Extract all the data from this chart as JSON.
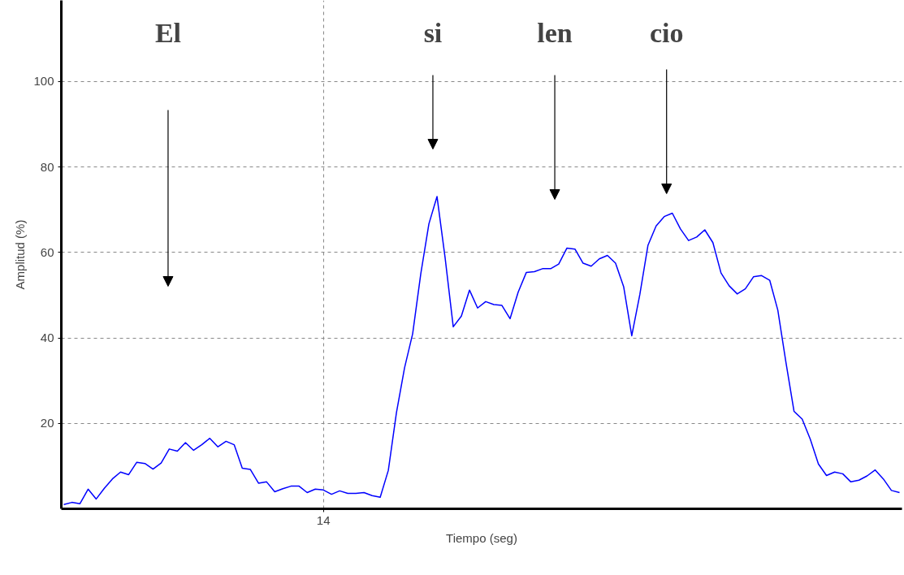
{
  "chart_data": {
    "type": "line",
    "xlabel": "Tiempo (seg)",
    "ylabel": "Amplitud (%)",
    "categories": [
      null,
      null,
      null,
      null,
      null,
      null,
      null,
      null,
      null,
      null,
      null,
      null,
      null,
      null,
      null,
      null,
      null,
      null,
      null,
      null,
      null,
      null,
      null,
      null,
      null,
      null,
      null,
      null,
      null,
      null,
      null,
      null,
      "14",
      null,
      null,
      null,
      null,
      null,
      null,
      null,
      null,
      null,
      null,
      null,
      null,
      null,
      null,
      null,
      null,
      null,
      null,
      null,
      null,
      null,
      null,
      null,
      null,
      null,
      null,
      null,
      null,
      null,
      null,
      null,
      null,
      null,
      null,
      null,
      null,
      null,
      null,
      null,
      null,
      null,
      null,
      null,
      null,
      null,
      null,
      null,
      null,
      null,
      null,
      null,
      null,
      null,
      null,
      null,
      null,
      null,
      null,
      null,
      null,
      null,
      null,
      null,
      null,
      null,
      null,
      null,
      null,
      null,
      null,
      null
    ],
    "series": [
      {
        "color": "#0000ff",
        "values": [
          1.0,
          1.5,
          1.2,
          4.6,
          2.3,
          4.8,
          7.0,
          8.6,
          8.0,
          10.9,
          10.6,
          9.3,
          10.7,
          14.0,
          13.5,
          15.5,
          13.7,
          15.0,
          16.5,
          14.5,
          15.8,
          15.0,
          9.5,
          9.2,
          6.0,
          6.3,
          4.0,
          4.7,
          5.3,
          5.3,
          3.8,
          4.6,
          4.4,
          3.4,
          4.2,
          3.6,
          3.6,
          3.8,
          3.1,
          2.7,
          9.0,
          22.5,
          33,
          41,
          55,
          66.7,
          73.1,
          58.7,
          42.6,
          45.1,
          51.2,
          47,
          48.5,
          47.8,
          47.6,
          44.5,
          50.7,
          55.3,
          55.5,
          56.2,
          56.2,
          57.3,
          61.0,
          60.8,
          57.5,
          56.8,
          58.5,
          59.3,
          57.5,
          52,
          40.5,
          50.2,
          61.7,
          66.2,
          68.4,
          69.2,
          65.5,
          62.8,
          63.6,
          65.3,
          62.3,
          55.2,
          52.2,
          50.3,
          51.5,
          54.3,
          54.6,
          53.5,
          46.5,
          34.3,
          22.8,
          21,
          16.3,
          10.5,
          7.8,
          8.6,
          8.2,
          6.3,
          6.7,
          7.7,
          9.1,
          7.0,
          4.3,
          3.8
        ]
      }
    ],
    "ylim": [
      0,
      119
    ],
    "yticks": [
      20,
      40,
      60,
      80,
      100
    ],
    "grid": true,
    "marker": "none",
    "line_style": "solid",
    "annotations": [
      "El",
      "si",
      "len",
      "cio"
    ]
  }
}
